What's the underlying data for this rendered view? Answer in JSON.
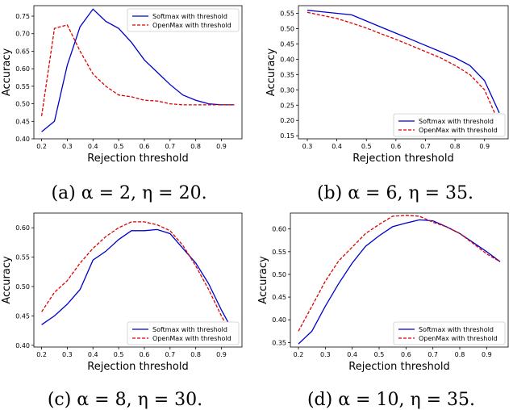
{
  "chart_data": [
    {
      "type": "line",
      "caption": "(a) α = 2, η = 20.",
      "xlabel": "Rejection threshold",
      "ylabel": "Accuracy",
      "xlim": [
        0.17,
        0.98
      ],
      "ylim": [
        0.4,
        0.78
      ],
      "xticks": [
        "0.2",
        "0.3",
        "0.4",
        "0.5",
        "0.6",
        "0.7",
        "0.8",
        "0.9"
      ],
      "yticks": [
        "0.40",
        "0.45",
        "0.50",
        "0.55",
        "0.60",
        "0.65",
        "0.70",
        "0.75"
      ],
      "legend_position": "top-right",
      "x": [
        0.2,
        0.25,
        0.3,
        0.35,
        0.4,
        0.45,
        0.5,
        0.55,
        0.6,
        0.65,
        0.7,
        0.75,
        0.8,
        0.85,
        0.9,
        0.95
      ],
      "series": [
        {
          "name": "Softmax with threshold",
          "color": "#0000cc",
          "dash": "solid",
          "values": [
            0.42,
            0.45,
            0.61,
            0.72,
            0.77,
            0.735,
            0.715,
            0.675,
            0.625,
            0.59,
            0.555,
            0.525,
            0.51,
            0.5,
            0.497,
            0.497
          ]
        },
        {
          "name": "OpenMax with threshold",
          "color": "#dd0000",
          "dash": "dashed",
          "values": [
            0.465,
            0.715,
            0.725,
            0.65,
            0.585,
            0.55,
            0.525,
            0.52,
            0.51,
            0.508,
            0.5,
            0.497,
            0.497,
            0.497,
            0.497,
            0.497
          ]
        }
      ]
    },
    {
      "type": "line",
      "caption": "(b) α = 6, η = 35.",
      "xlabel": "Rejection threshold",
      "ylabel": "Accuracy",
      "xlim": [
        0.27,
        0.98
      ],
      "ylim": [
        0.14,
        0.575
      ],
      "xticks": [
        "0.3",
        "0.4",
        "0.5",
        "0.6",
        "0.7",
        "0.8",
        "0.9"
      ],
      "yticks": [
        "0.15",
        "0.20",
        "0.25",
        "0.30",
        "0.35",
        "0.40",
        "0.45",
        "0.50",
        "0.55"
      ],
      "legend_position": "bottom-right",
      "x": [
        0.3,
        0.35,
        0.4,
        0.45,
        0.5,
        0.55,
        0.6,
        0.65,
        0.7,
        0.75,
        0.8,
        0.85,
        0.9,
        0.95
      ],
      "series": [
        {
          "name": "Softmax with threshold",
          "color": "#0000cc",
          "dash": "solid",
          "values": [
            0.56,
            0.555,
            0.55,
            0.545,
            0.525,
            0.505,
            0.485,
            0.465,
            0.445,
            0.425,
            0.405,
            0.38,
            0.33,
            0.225
          ]
        },
        {
          "name": "OpenMax with threshold",
          "color": "#dd0000",
          "dash": "dashed",
          "values": [
            0.553,
            0.543,
            0.533,
            0.518,
            0.502,
            0.483,
            0.465,
            0.445,
            0.425,
            0.405,
            0.38,
            0.35,
            0.3,
            0.19
          ]
        }
      ]
    },
    {
      "type": "line",
      "caption": "(c) α = 8, η = 30.",
      "xlabel": "Rejection threshold",
      "ylabel": "Accuracy",
      "xlim": [
        0.17,
        0.98
      ],
      "ylim": [
        0.397,
        0.625
      ],
      "xticks": [
        "0.2",
        "0.3",
        "0.4",
        "0.5",
        "0.6",
        "0.7",
        "0.8",
        "0.9"
      ],
      "yticks": [
        "0.40",
        "0.45",
        "0.50",
        "0.55",
        "0.60"
      ],
      "legend_position": "bottom-right",
      "x": [
        0.2,
        0.25,
        0.3,
        0.35,
        0.4,
        0.45,
        0.5,
        0.55,
        0.6,
        0.65,
        0.7,
        0.75,
        0.8,
        0.85,
        0.9,
        0.95
      ],
      "series": [
        {
          "name": "Softmax with threshold",
          "color": "#0000cc",
          "dash": "solid",
          "values": [
            0.435,
            0.45,
            0.47,
            0.495,
            0.545,
            0.56,
            0.58,
            0.595,
            0.595,
            0.597,
            0.59,
            0.565,
            0.54,
            0.505,
            0.46,
            0.42
          ]
        },
        {
          "name": "OpenMax with threshold",
          "color": "#dd0000",
          "dash": "dashed",
          "values": [
            0.457,
            0.49,
            0.51,
            0.54,
            0.565,
            0.585,
            0.6,
            0.61,
            0.61,
            0.605,
            0.595,
            0.57,
            0.535,
            0.495,
            0.45,
            0.41
          ]
        }
      ]
    },
    {
      "type": "line",
      "caption": "(d) α = 10, η = 35.",
      "xlabel": "Rejection threshold",
      "ylabel": "Accuracy",
      "xlim": [
        0.17,
        0.98
      ],
      "ylim": [
        0.34,
        0.635
      ],
      "xticks": [
        "0.2",
        "0.3",
        "0.4",
        "0.5",
        "0.6",
        "0.7",
        "0.8",
        "0.9"
      ],
      "yticks": [
        "0.35",
        "0.40",
        "0.45",
        "0.50",
        "0.55",
        "0.60"
      ],
      "legend_position": "bottom-right",
      "x": [
        0.2,
        0.25,
        0.3,
        0.35,
        0.4,
        0.45,
        0.5,
        0.55,
        0.6,
        0.65,
        0.7,
        0.75,
        0.8,
        0.85,
        0.9,
        0.95
      ],
      "series": [
        {
          "name": "Softmax with threshold",
          "color": "#0000cc",
          "dash": "solid",
          "values": [
            0.347,
            0.375,
            0.43,
            0.48,
            0.525,
            0.562,
            0.585,
            0.605,
            0.613,
            0.62,
            0.618,
            0.605,
            0.59,
            0.57,
            0.55,
            0.528
          ]
        },
        {
          "name": "OpenMax with threshold",
          "color": "#dd0000",
          "dash": "dashed",
          "values": [
            0.375,
            0.43,
            0.485,
            0.53,
            0.56,
            0.59,
            0.61,
            0.628,
            0.63,
            0.628,
            0.615,
            0.605,
            0.59,
            0.568,
            0.545,
            0.528
          ]
        }
      ]
    }
  ]
}
